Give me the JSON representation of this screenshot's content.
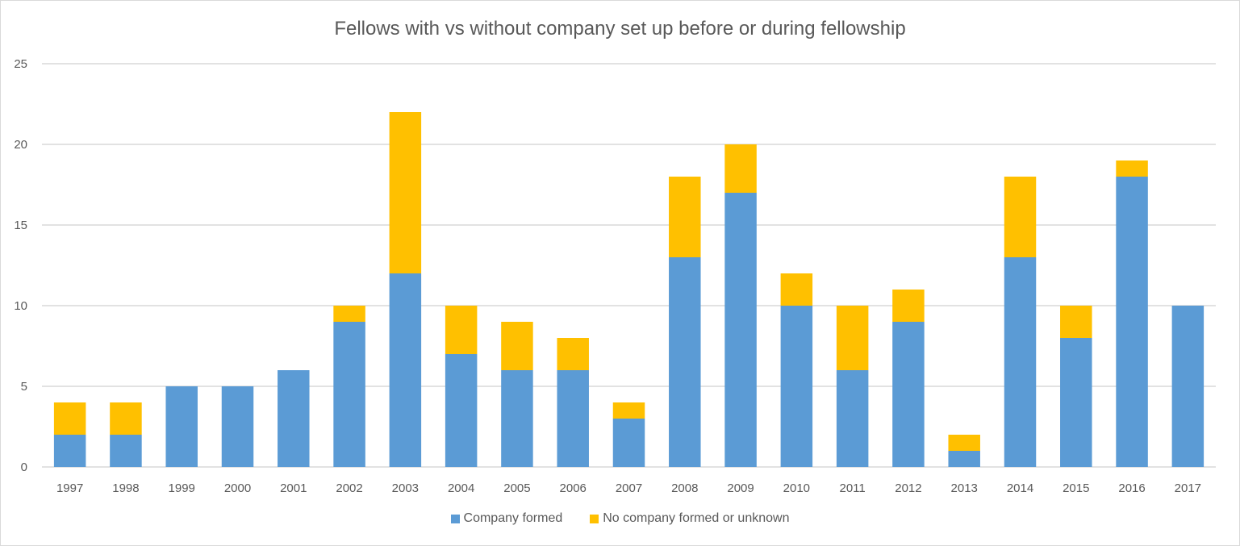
{
  "chart_data": {
    "type": "bar",
    "stacked": true,
    "title": "Fellows with vs without company set up before or during fellowship",
    "xlabel": "",
    "ylabel": "",
    "ylim": [
      0,
      25
    ],
    "yticks": [
      0,
      5,
      10,
      15,
      20,
      25
    ],
    "grid": true,
    "legend_position": "bottom",
    "categories": [
      "1997",
      "1998",
      "1999",
      "2000",
      "2001",
      "2002",
      "2003",
      "2004",
      "2005",
      "2006",
      "2007",
      "2008",
      "2009",
      "2010",
      "2011",
      "2012",
      "2013",
      "2014",
      "2015",
      "2016",
      "2017"
    ],
    "series": [
      {
        "name": "Company formed",
        "color": "#5b9bd5",
        "values": [
          2,
          2,
          5,
          5,
          6,
          9,
          12,
          7,
          6,
          6,
          3,
          13,
          17,
          10,
          6,
          9,
          1,
          13,
          8,
          18,
          10
        ]
      },
      {
        "name": "No company formed or unknown",
        "color": "#ffc000",
        "values": [
          2,
          2,
          0,
          0,
          0,
          1,
          10,
          3,
          3,
          2,
          1,
          5,
          3,
          2,
          4,
          2,
          1,
          5,
          2,
          1,
          0
        ]
      }
    ]
  }
}
